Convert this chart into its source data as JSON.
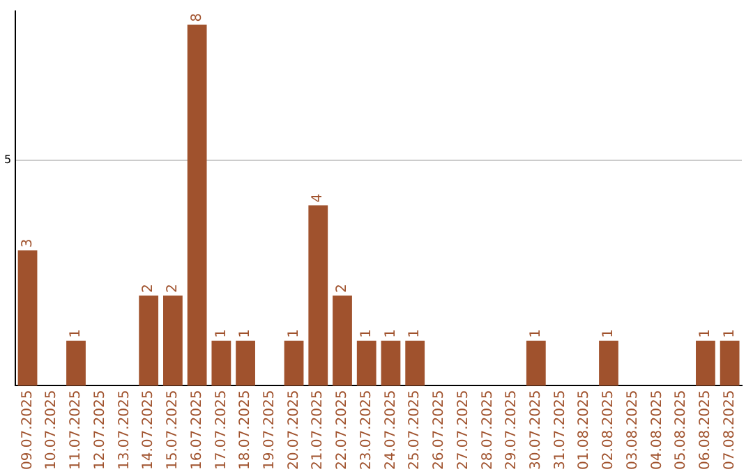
{
  "chart_data": {
    "type": "bar",
    "categories": [
      "09.07.2025",
      "10.07.2025",
      "11.07.2025",
      "12.07.2025",
      "13.07.2025",
      "14.07.2025",
      "15.07.2025",
      "16.07.2025",
      "17.07.2025",
      "18.07.2025",
      "19.07.2025",
      "20.07.2025",
      "21.07.2025",
      "22.07.2025",
      "23.07.2025",
      "24.07.2025",
      "25.07.2025",
      "26.07.2025",
      "27.07.2025",
      "28.07.2025",
      "29.07.2025",
      "30.07.2025",
      "31.07.2025",
      "01.08.2025",
      "02.08.2025",
      "03.08.2025",
      "04.08.2025",
      "05.08.2025",
      "06.08.2025",
      "07.08.2025"
    ],
    "values": [
      3,
      0,
      1,
      0,
      0,
      2,
      2,
      8,
      1,
      1,
      0,
      1,
      4,
      2,
      1,
      1,
      1,
      0,
      0,
      0,
      0,
      1,
      0,
      0,
      1,
      0,
      0,
      0,
      1,
      1
    ],
    "value_labels": [
      "3",
      null,
      "1",
      null,
      null,
      "2",
      "2",
      "8",
      "1",
      "1",
      null,
      "1",
      "4",
      "2",
      "1",
      "1",
      "1",
      null,
      null,
      null,
      null,
      "1",
      null,
      null,
      "1",
      null,
      null,
      null,
      "1",
      "1"
    ],
    "color": "#a0522d",
    "ylim": [
      0,
      8.3
    ],
    "yticks": [
      5
    ],
    "grid": "y",
    "legend": false
  }
}
